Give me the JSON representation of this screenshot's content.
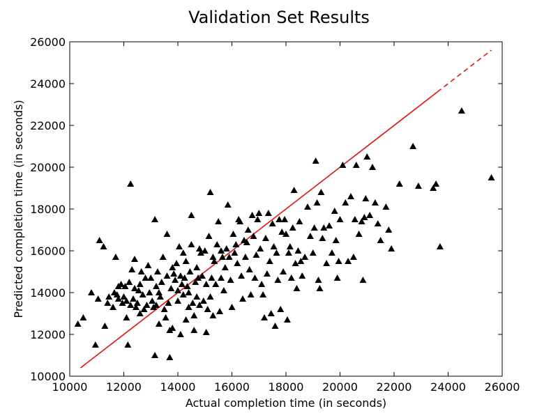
{
  "chart_data": {
    "type": "scatter",
    "title": "Validation Set Results",
    "xlabel": "Actual completion time (in seconds)",
    "ylabel": "Predicted completion time (in seconds)",
    "xlim": [
      10000,
      26000
    ],
    "ylim": [
      10000,
      26000
    ],
    "xticks": [
      "10000",
      "12000",
      "14000",
      "16000",
      "18000",
      "20000",
      "22000",
      "24000",
      "26000"
    ],
    "yticks": [
      "10000",
      "12000",
      "14000",
      "16000",
      "18000",
      "20000",
      "22000",
      "24000",
      "26000"
    ],
    "grid": false,
    "marker_color": "#000000",
    "fit_line": {
      "color": "#ff0000",
      "x": [
        10400,
        25600
      ],
      "y": [
        10400,
        25600
      ],
      "solid_until_x": 23600,
      "style_after": "dashed"
    },
    "points": [
      [
        10300,
        12500
      ],
      [
        10500,
        12800
      ],
      [
        10800,
        14000
      ],
      [
        10950,
        11500
      ],
      [
        11050,
        13700
      ],
      [
        11100,
        16500
      ],
      [
        11250,
        16200
      ],
      [
        11300,
        12400
      ],
      [
        11400,
        13500
      ],
      [
        11450,
        13800
      ],
      [
        11600,
        13300
      ],
      [
        11650,
        14000
      ],
      [
        11700,
        15700
      ],
      [
        11750,
        13900
      ],
      [
        11800,
        14300
      ],
      [
        11800,
        13700
      ],
      [
        11900,
        14400
      ],
      [
        11950,
        13500
      ],
      [
        12000,
        13800
      ],
      [
        12050,
        14300
      ],
      [
        12100,
        13600
      ],
      [
        12100,
        12800
      ],
      [
        12150,
        11500
      ],
      [
        12200,
        14500
      ],
      [
        12250,
        13400
      ],
      [
        12250,
        19200
      ],
      [
        12300,
        15100
      ],
      [
        12350,
        13700
      ],
      [
        12400,
        15600
      ],
      [
        12400,
        14200
      ],
      [
        12450,
        13300
      ],
      [
        12500,
        13500
      ],
      [
        12550,
        14100
      ],
      [
        12600,
        13000
      ],
      [
        12600,
        14400
      ],
      [
        12650,
        15000
      ],
      [
        12700,
        13900
      ],
      [
        12750,
        13200
      ],
      [
        12800,
        14700
      ],
      [
        12850,
        13400
      ],
      [
        12900,
        15300
      ],
      [
        12950,
        14000
      ],
      [
        13000,
        14700
      ],
      [
        13050,
        13600
      ],
      [
        13100,
        13300
      ],
      [
        13150,
        11000
      ],
      [
        13150,
        17500
      ],
      [
        13200,
        14300
      ],
      [
        13200,
        13400
      ],
      [
        13250,
        15000
      ],
      [
        13300,
        14000
      ],
      [
        13300,
        12500
      ],
      [
        13350,
        13800
      ],
      [
        13400,
        14500
      ],
      [
        13450,
        15700
      ],
      [
        13500,
        13200
      ],
      [
        13550,
        12800
      ],
      [
        13600,
        14800
      ],
      [
        13600,
        16800
      ],
      [
        13650,
        13500
      ],
      [
        13700,
        12200
      ],
      [
        13700,
        10900
      ],
      [
        13750,
        14200
      ],
      [
        13800,
        15200
      ],
      [
        13800,
        12300
      ],
      [
        13850,
        14900
      ],
      [
        13900,
        14600
      ],
      [
        13950,
        15400
      ],
      [
        14000,
        14100
      ],
      [
        14000,
        13600
      ],
      [
        14050,
        16200
      ],
      [
        14100,
        14800
      ],
      [
        14100,
        12000
      ],
      [
        14150,
        14400
      ],
      [
        14200,
        15900
      ],
      [
        14200,
        13900
      ],
      [
        14250,
        14700
      ],
      [
        14300,
        12700
      ],
      [
        14300,
        15500
      ],
      [
        14350,
        14300
      ],
      [
        14400,
        13300
      ],
      [
        14400,
        14000
      ],
      [
        14450,
        15000
      ],
      [
        14500,
        16300
      ],
      [
        14500,
        17700
      ],
      [
        14550,
        13500
      ],
      [
        14600,
        12200
      ],
      [
        14600,
        12900
      ],
      [
        14650,
        14500
      ],
      [
        14700,
        15200
      ],
      [
        14700,
        13800
      ],
      [
        14750,
        14700
      ],
      [
        14800,
        16100
      ],
      [
        14800,
        13400
      ],
      [
        14850,
        15900
      ],
      [
        14900,
        14800
      ],
      [
        14950,
        13600
      ],
      [
        15000,
        16000
      ],
      [
        15050,
        14400
      ],
      [
        15050,
        12100
      ],
      [
        15100,
        13200
      ],
      [
        15150,
        16700
      ],
      [
        15200,
        18800
      ],
      [
        15200,
        13800
      ],
      [
        15250,
        14700
      ],
      [
        15300,
        15700
      ],
      [
        15300,
        12900
      ],
      [
        15350,
        15500
      ],
      [
        15400,
        14400
      ],
      [
        15450,
        16300
      ],
      [
        15500,
        17400
      ],
      [
        15550,
        13100
      ],
      [
        15600,
        16000
      ],
      [
        15600,
        14700
      ],
      [
        15650,
        15700
      ],
      [
        15700,
        14100
      ],
      [
        15750,
        15200
      ],
      [
        15800,
        16100
      ],
      [
        15850,
        18200
      ],
      [
        15900,
        15700
      ],
      [
        15950,
        14600
      ],
      [
        16000,
        13300
      ],
      [
        16050,
        16800
      ],
      [
        16100,
        15900
      ],
      [
        16150,
        16300
      ],
      [
        16200,
        15400
      ],
      [
        16250,
        17500
      ],
      [
        16300,
        17400
      ],
      [
        16350,
        14800
      ],
      [
        16400,
        13700
      ],
      [
        16450,
        16500
      ],
      [
        16500,
        15700
      ],
      [
        16550,
        16400
      ],
      [
        16600,
        17000
      ],
      [
        16650,
        15100
      ],
      [
        16700,
        13900
      ],
      [
        16750,
        17700
      ],
      [
        16800,
        16700
      ],
      [
        16850,
        14700
      ],
      [
        16900,
        15800
      ],
      [
        16950,
        17500
      ],
      [
        17000,
        17800
      ],
      [
        17050,
        16100
      ],
      [
        17100,
        14400
      ],
      [
        17150,
        13900
      ],
      [
        17200,
        12800
      ],
      [
        17250,
        16600
      ],
      [
        17300,
        14900
      ],
      [
        17350,
        17800
      ],
      [
        17400,
        15500
      ],
      [
        17450,
        13000
      ],
      [
        17500,
        17300
      ],
      [
        17550,
        16200
      ],
      [
        17600,
        12400
      ],
      [
        17650,
        15900
      ],
      [
        17700,
        14600
      ],
      [
        17750,
        17500
      ],
      [
        17800,
        13200
      ],
      [
        17850,
        16900
      ],
      [
        17900,
        15000
      ],
      [
        17950,
        17500
      ],
      [
        18000,
        16800
      ],
      [
        18050,
        12700
      ],
      [
        18100,
        15900
      ],
      [
        18150,
        16200
      ],
      [
        18200,
        14700
      ],
      [
        18250,
        17100
      ],
      [
        18300,
        18900
      ],
      [
        18350,
        15400
      ],
      [
        18400,
        14200
      ],
      [
        18450,
        16000
      ],
      [
        18500,
        17400
      ],
      [
        18550,
        15500
      ],
      [
        18600,
        14800
      ],
      [
        18700,
        15700
      ],
      [
        18800,
        18100
      ],
      [
        18900,
        16700
      ],
      [
        19000,
        15900
      ],
      [
        19050,
        17100
      ],
      [
        19100,
        20300
      ],
      [
        19150,
        18300
      ],
      [
        19200,
        14600
      ],
      [
        19250,
        14200
      ],
      [
        19300,
        18800
      ],
      [
        19350,
        16600
      ],
      [
        19400,
        17100
      ],
      [
        19500,
        15400
      ],
      [
        19600,
        17200
      ],
      [
        19700,
        15900
      ],
      [
        19800,
        17900
      ],
      [
        19850,
        16500
      ],
      [
        19900,
        14700
      ],
      [
        19950,
        15500
      ],
      [
        20000,
        17500
      ],
      [
        20100,
        20100
      ],
      [
        20200,
        18300
      ],
      [
        20300,
        15500
      ],
      [
        20400,
        18600
      ],
      [
        20500,
        15700
      ],
      [
        20550,
        17500
      ],
      [
        20600,
        20100
      ],
      [
        20700,
        16800
      ],
      [
        20800,
        17400
      ],
      [
        20850,
        14600
      ],
      [
        20900,
        17600
      ],
      [
        20950,
        18500
      ],
      [
        21000,
        20500
      ],
      [
        21100,
        17700
      ],
      [
        21200,
        20000
      ],
      [
        21300,
        18300
      ],
      [
        21400,
        17300
      ],
      [
        21500,
        16500
      ],
      [
        21700,
        18100
      ],
      [
        21800,
        17000
      ],
      [
        21900,
        16100
      ],
      [
        22200,
        19200
      ],
      [
        22700,
        21000
      ],
      [
        22900,
        19100
      ],
      [
        23450,
        19000
      ],
      [
        23550,
        19200
      ],
      [
        23700,
        16200
      ],
      [
        24500,
        22700
      ],
      [
        25600,
        19500
      ]
    ]
  }
}
